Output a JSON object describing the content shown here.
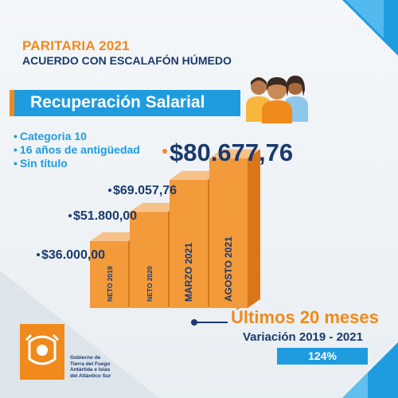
{
  "header": {
    "title": "PARITARIA 2021",
    "subtitle": "ACUERDO CON ESCALAFÓN HÚMEDO"
  },
  "banner": {
    "label": "Recuperación Salarial"
  },
  "bullets": [
    "Categoria 10",
    "16 años de antigüedad",
    "Sin título"
  ],
  "chart_data": {
    "type": "bar",
    "categories": [
      "NETO 2019",
      "NETO 2020",
      "MARZO 2021",
      "AGOSTO 2021"
    ],
    "values": [
      36000,
      51800,
      69057.76,
      80677.76
    ],
    "value_labels": [
      "$36.000,00",
      "$51.800,00",
      "$69.057,76",
      "$80.677,76"
    ],
    "title": "",
    "xlabel": "",
    "ylabel": "",
    "ylim": [
      0,
      90000
    ],
    "grid": false,
    "legend": "none"
  },
  "footer": {
    "headline": "Últimos 20 meses",
    "variation": "Variación 2019 - 2021",
    "percent": "124%"
  },
  "logo": {
    "lines": [
      "Gobierno de",
      "Tierra del Fuego",
      "Antártida e Islas",
      "del Atlántico Sur"
    ]
  },
  "colors": {
    "accent_orange": "#f08a1c",
    "brand_blue": "#1f9be0",
    "navy": "#1a3a6e",
    "box_front": "#f39a3a",
    "box_side": "#d9761a",
    "box_top": "#f7c18a"
  },
  "icons": [
    "people-group-icon",
    "government-seal-icon"
  ]
}
